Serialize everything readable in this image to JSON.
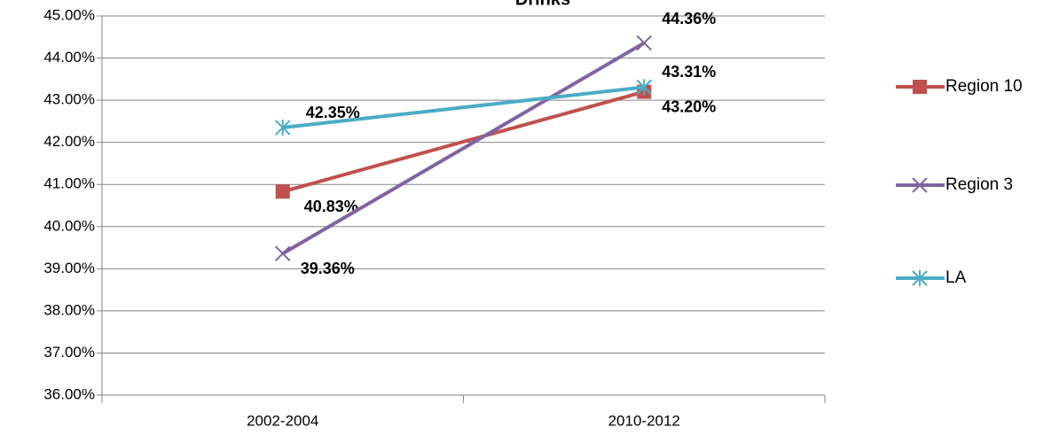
{
  "chart_data": {
    "type": "line",
    "title": "Drinks",
    "categories": [
      "2002-2004",
      "2010-2012"
    ],
    "series": [
      {
        "name": "Region 10",
        "color": "#c0504d",
        "marker": "square",
        "values": [
          40.83,
          43.2
        ],
        "value_labels": [
          "40.83%",
          "43.20%"
        ]
      },
      {
        "name": "Region 3",
        "color": "#8064a2",
        "marker": "x",
        "values": [
          39.36,
          44.36
        ],
        "value_labels": [
          "39.36%",
          "44.36%"
        ]
      },
      {
        "name": "LA",
        "color": "#4bacc6",
        "marker": "asterisk",
        "values": [
          42.35,
          43.31
        ],
        "value_labels": [
          "42.35%",
          "43.31%"
        ]
      }
    ],
    "ylim": [
      36,
      45
    ],
    "yticks": [
      {
        "value": 36,
        "label": "36.00%"
      },
      {
        "value": 37,
        "label": "37.00%"
      },
      {
        "value": 38,
        "label": "38.00%"
      },
      {
        "value": 39,
        "label": "39.00%"
      },
      {
        "value": 40,
        "label": "40.00%"
      },
      {
        "value": 41,
        "label": "41.00%"
      },
      {
        "value": 42,
        "label": "42.00%"
      },
      {
        "value": 43,
        "label": "43.00%"
      },
      {
        "value": 44,
        "label": "44.00%"
      },
      {
        "value": 45,
        "label": "45.00%"
      }
    ],
    "grid": true,
    "legend": "right"
  }
}
